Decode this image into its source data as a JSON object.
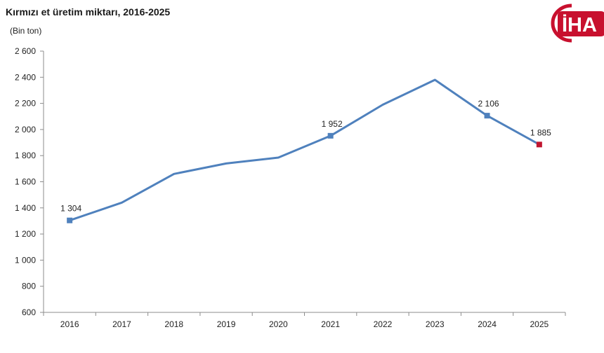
{
  "header": {
    "title": "Kırmızı et üretim miktarı, 2016-2025",
    "unit": "(Bin ton)"
  },
  "logo": {
    "text": "İHA",
    "color": "#c8102e"
  },
  "chart_data": {
    "type": "line",
    "title": "Kırmızı et üretim miktarı, 2016-2025",
    "ylabel": "(Bin ton)",
    "xlabel": "",
    "categories": [
      "2016",
      "2017",
      "2018",
      "2019",
      "2020",
      "2021",
      "2022",
      "2023",
      "2024",
      "2025"
    ],
    "series": [
      {
        "values": [
          1304,
          1440,
          1660,
          1740,
          1785,
          1952,
          2190,
          2380,
          2106,
          1885
        ],
        "color": "#4f81bd"
      }
    ],
    "data_labels": [
      {
        "category": "2016",
        "value": 1304,
        "text": "1 304"
      },
      {
        "category": "2021",
        "value": 1952,
        "text": "1 952"
      },
      {
        "category": "2024",
        "value": 2106,
        "text": "2 106"
      },
      {
        "category": "2025",
        "value": 1885,
        "text": "1 885"
      }
    ],
    "markers": [
      {
        "category": "2016",
        "color": "#4f81bd"
      },
      {
        "category": "2021",
        "color": "#4f81bd"
      },
      {
        "category": "2024",
        "color": "#4f81bd"
      },
      {
        "category": "2025",
        "color": "#c0152f"
      }
    ],
    "ylim": [
      600,
      2600
    ],
    "yticks": [
      600,
      800,
      1000,
      1200,
      1400,
      1600,
      1800,
      2000,
      2200,
      2400,
      2600
    ],
    "ytick_labels": [
      "600",
      "800",
      "1 000",
      "1 200",
      "1 400",
      "1 600",
      "1 800",
      "2 000",
      "2 200",
      "2 400",
      "2 600"
    ],
    "grid": false,
    "legend": "none"
  }
}
